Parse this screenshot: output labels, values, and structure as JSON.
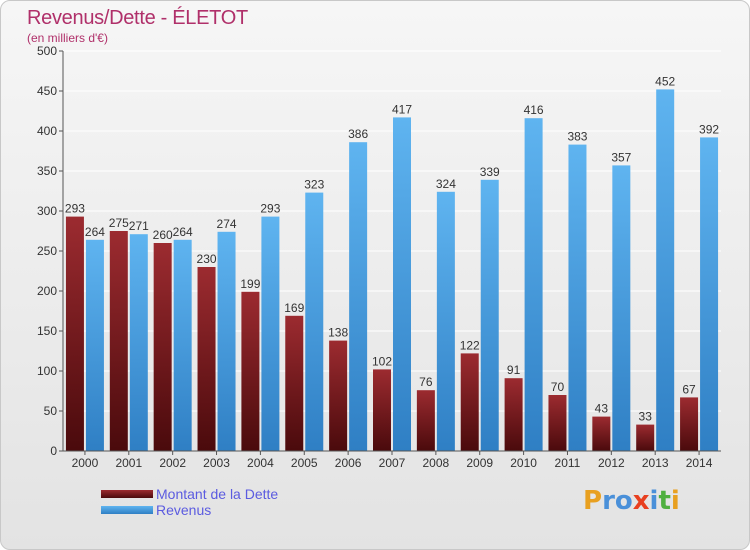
{
  "header": {
    "title": "Revenus/Dette - ÉLETOT",
    "subtitle": "(en milliers d'€)"
  },
  "legend": {
    "items": [
      {
        "label": "Montant de la Dette",
        "color": "#7a1e22"
      },
      {
        "label": "Revenus",
        "color": "#3d9ee6"
      }
    ]
  },
  "logo": {
    "text": "Proxiti",
    "letters": [
      {
        "ch": "P",
        "color": "#e8a020"
      },
      {
        "ch": "r",
        "color": "#4a90d9"
      },
      {
        "ch": "o",
        "color": "#4a90d9"
      },
      {
        "ch": "x",
        "color": "#e84020"
      },
      {
        "ch": "i",
        "color": "#4a90d9"
      },
      {
        "ch": "t",
        "color": "#50b040"
      },
      {
        "ch": "i",
        "color": "#e8a020"
      }
    ]
  },
  "chart_data": {
    "type": "bar",
    "categories": [
      "2000",
      "2001",
      "2002",
      "2003",
      "2004",
      "2005",
      "2006",
      "2007",
      "2008",
      "2009",
      "2010",
      "2011",
      "2012",
      "2013",
      "2014"
    ],
    "series": [
      {
        "name": "Montant de la Dette",
        "color": "#7a1e22",
        "values": [
          293,
          275,
          260,
          230,
          199,
          169,
          138,
          102,
          76,
          122,
          91,
          70,
          43,
          33,
          67
        ]
      },
      {
        "name": "Revenus",
        "color": "#3d9ee6",
        "values": [
          264,
          271,
          264,
          274,
          293,
          323,
          386,
          417,
          324,
          339,
          416,
          383,
          357,
          452,
          392
        ]
      }
    ],
    "ylim": [
      0,
      500
    ],
    "yticks": [
      0,
      50,
      100,
      150,
      200,
      250,
      300,
      350,
      400,
      450,
      500
    ],
    "grid": true,
    "legend_position": "bottom-left"
  }
}
